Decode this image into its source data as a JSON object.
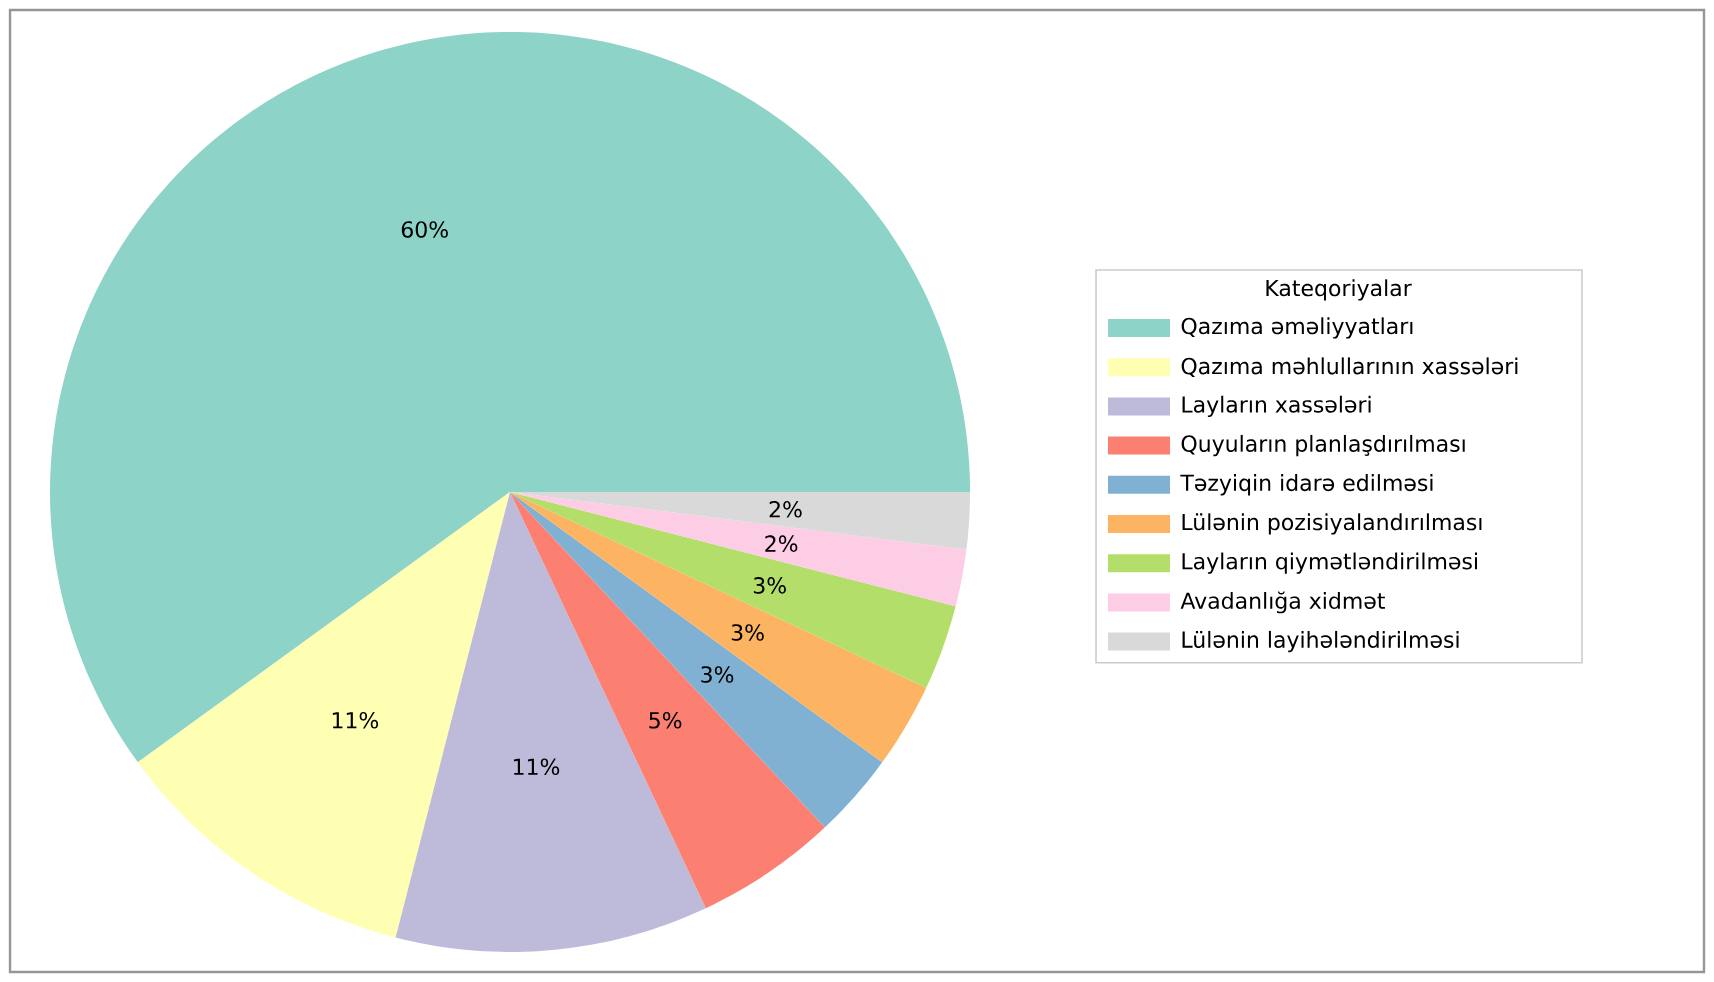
{
  "chart_data": {
    "type": "pie",
    "legend_title": "Kateqoriyalar",
    "legend": "right",
    "categories": [
      "Qazıma əməliyyatları",
      "Qazıma məhlullarının xassələri",
      "Layların xassələri",
      "Quyuların planlaşdırılması",
      "Təzyiqin idarə edilməsi",
      "Lülənin pozisiyalandırılması",
      "Layların qiymətləndirilməsi",
      "Avadanlığa xidmət",
      "Lülənin layihələndirilməsi"
    ],
    "values": [
      60,
      11,
      11,
      5,
      3,
      3,
      3,
      2,
      2
    ],
    "value_labels": [
      "60%",
      "11%",
      "11%",
      "5%",
      "3%",
      "3%",
      "3%",
      "2%",
      "2%"
    ],
    "colors": [
      "#8dd3c7",
      "#ffffb3",
      "#bebada",
      "#fb8072",
      "#80b1d3",
      "#fdb462",
      "#b3de69",
      "#fccde5",
      "#d9d9d9"
    ]
  }
}
